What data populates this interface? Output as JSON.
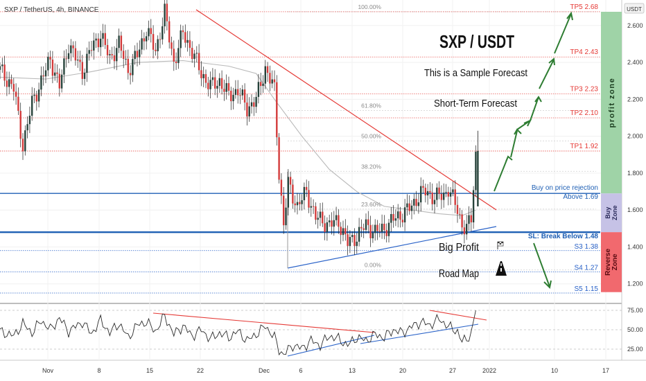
{
  "header": {
    "symbol_line": "SXP / TetherUS, 4h, BINANCE"
  },
  "currency_badge": "USDT",
  "chart_data": [
    {
      "type": "candlestick",
      "title": "SXP / TetherUS, 4h, BINANCE",
      "ylim": [
        1.12,
        2.68
      ],
      "y_ticks": [
        "2.600",
        "2.400",
        "2.200",
        "2.000",
        "1.800",
        "1.600",
        "1.400",
        "1.200"
      ],
      "x_ticks": [
        "Nov",
        "8",
        "15",
        "22",
        "Dec",
        "6",
        "13",
        "20",
        "27",
        "2022",
        "10",
        "17"
      ],
      "close_path": [
        [
          0,
          2.36
        ],
        [
          3,
          2.26
        ],
        [
          5,
          1.95
        ],
        [
          7,
          2.18
        ],
        [
          9,
          2.3
        ],
        [
          11,
          2.42
        ],
        [
          13,
          2.27
        ],
        [
          15,
          2.5
        ],
        [
          18,
          2.35
        ],
        [
          20,
          2.48
        ],
        [
          22,
          2.55
        ],
        [
          24,
          2.42
        ],
        [
          26,
          2.5
        ],
        [
          28,
          2.36
        ],
        [
          30,
          2.44
        ],
        [
          32,
          2.58
        ],
        [
          34,
          2.46
        ],
        [
          36,
          2.67
        ],
        [
          38,
          2.4
        ],
        [
          40,
          2.56
        ],
        [
          42,
          2.46
        ],
        [
          44,
          2.34
        ],
        [
          46,
          2.27
        ],
        [
          48,
          2.3
        ],
        [
          50,
          2.22
        ],
        [
          52,
          2.25
        ],
        [
          54,
          2.15
        ],
        [
          56,
          2.2
        ],
        [
          58,
          2.37
        ],
        [
          60,
          2.25
        ],
        [
          61,
          1.8
        ],
        [
          62,
          1.52
        ],
        [
          63,
          1.74
        ],
        [
          65,
          1.62
        ],
        [
          67,
          1.7
        ],
        [
          69,
          1.56
        ],
        [
          72,
          1.52
        ],
        [
          74,
          1.54
        ],
        [
          76,
          1.42
        ],
        [
          78,
          1.46
        ],
        [
          80,
          1.52
        ],
        [
          82,
          1.48
        ],
        [
          84,
          1.5
        ],
        [
          86,
          1.55
        ],
        [
          88,
          1.58
        ],
        [
          90,
          1.62
        ],
        [
          91,
          1.66
        ],
        [
          92,
          1.69
        ],
        [
          93,
          1.7
        ],
        [
          95,
          1.67
        ],
        [
          97,
          1.68
        ],
        [
          98,
          1.72
        ],
        [
          99,
          1.66
        ],
        [
          100,
          1.6
        ],
        [
          101,
          1.52
        ],
        [
          102,
          1.5
        ],
        [
          103,
          1.55
        ],
        [
          104,
          1.9
        ]
      ],
      "moving_average": [
        [
          0,
          2.32
        ],
        [
          10,
          2.31
        ],
        [
          20,
          2.35
        ],
        [
          30,
          2.4
        ],
        [
          40,
          2.41
        ],
        [
          50,
          2.38
        ],
        [
          56,
          2.34
        ],
        [
          60,
          2.2
        ],
        [
          66,
          2.0
        ],
        [
          72,
          1.82
        ],
        [
          78,
          1.7
        ],
        [
          84,
          1.62
        ],
        [
          90,
          1.6
        ],
        [
          96,
          1.58
        ],
        [
          101,
          1.57
        ],
        [
          104,
          1.6
        ]
      ],
      "fibonacci_levels": [
        {
          "ratio": "100.00%",
          "price": 2.675
        },
        {
          "ratio": "61.80%",
          "price": 2.14
        },
        {
          "ratio": "50.00%",
          "price": 1.975
        },
        {
          "ratio": "38.20%",
          "price": 1.81
        },
        {
          "ratio": "23.60%",
          "price": 1.605
        },
        {
          "ratio": "0.00%",
          "price": 1.275
        }
      ],
      "target_levels": [
        {
          "label": "TP5 2.68",
          "price": 2.675,
          "color": "#e53935"
        },
        {
          "label": "TP4 2.43",
          "price": 2.43,
          "color": "#e53935"
        },
        {
          "label": "TP3 2.23",
          "price": 2.23,
          "color": "#e53935"
        },
        {
          "label": "TP2 2.10",
          "price": 2.1,
          "color": "#e53935"
        },
        {
          "label": "TP1 1.92",
          "price": 1.92,
          "color": "#e53935"
        }
      ],
      "support_levels": [
        {
          "label": "S3 1.38",
          "price": 1.38
        },
        {
          "label": "S4 1.27",
          "price": 1.265
        },
        {
          "label": "S5 1.15",
          "price": 1.15
        }
      ],
      "buy_line": {
        "label_top": "Buy on price rejection",
        "label_bottom": "Above 1.69",
        "price": 1.69,
        "color": "#1e5fb4"
      },
      "stop_line": {
        "label": "SL: Break Below 1.48",
        "price": 1.48,
        "color": "#1e5fb4"
      },
      "zones": [
        {
          "label": "profit zone",
          "from": 1.69,
          "to": 2.68,
          "color": "#9fd3a7"
        },
        {
          "label": "Buy Zone",
          "from": 1.48,
          "to": 1.69,
          "color": "#c6c2e6"
        },
        {
          "label": "Reverse Zone",
          "from": 1.155,
          "to": 1.48,
          "color": "#f1696e"
        }
      ]
    },
    {
      "type": "line",
      "ylim": [
        15,
        85
      ],
      "y_ticks": [
        "75.00",
        "50.00",
        "25.00"
      ],
      "rsi_path": [
        [
          0,
          48
        ],
        [
          3,
          42
        ],
        [
          5,
          58
        ],
        [
          7,
          46
        ],
        [
          9,
          62
        ],
        [
          11,
          50
        ],
        [
          13,
          65
        ],
        [
          15,
          48
        ],
        [
          18,
          60
        ],
        [
          20,
          45
        ],
        [
          22,
          62
        ],
        [
          24,
          46
        ],
        [
          26,
          58
        ],
        [
          28,
          40
        ],
        [
          30,
          56
        ],
        [
          32,
          60
        ],
        [
          34,
          48
        ],
        [
          36,
          68
        ],
        [
          38,
          44
        ],
        [
          40,
          55
        ],
        [
          42,
          42
        ],
        [
          44,
          50
        ],
        [
          46,
          38
        ],
        [
          48,
          46
        ],
        [
          50,
          40
        ],
        [
          52,
          48
        ],
        [
          54,
          36
        ],
        [
          56,
          44
        ],
        [
          58,
          55
        ],
        [
          60,
          40
        ],
        [
          61,
          24
        ],
        [
          62,
          18
        ],
        [
          64,
          30
        ],
        [
          66,
          26
        ],
        [
          68,
          36
        ],
        [
          70,
          30
        ],
        [
          72,
          42
        ],
        [
          74,
          38
        ],
        [
          76,
          30
        ],
        [
          78,
          40
        ],
        [
          80,
          36
        ],
        [
          82,
          44
        ],
        [
          84,
          40
        ],
        [
          86,
          50
        ],
        [
          88,
          46
        ],
        [
          90,
          54
        ],
        [
          92,
          60
        ],
        [
          94,
          56
        ],
        [
          96,
          64
        ],
        [
          98,
          54
        ],
        [
          100,
          48
        ],
        [
          101,
          34
        ],
        [
          103,
          44
        ],
        [
          104,
          76
        ]
      ]
    }
  ],
  "annotations": {
    "headline": "SXP / USDT",
    "subtitle": "This is a Sample Forecast",
    "horizon": "Short-Term Forecast",
    "big_profit": "Big Profit",
    "road_map": "Road Map"
  }
}
